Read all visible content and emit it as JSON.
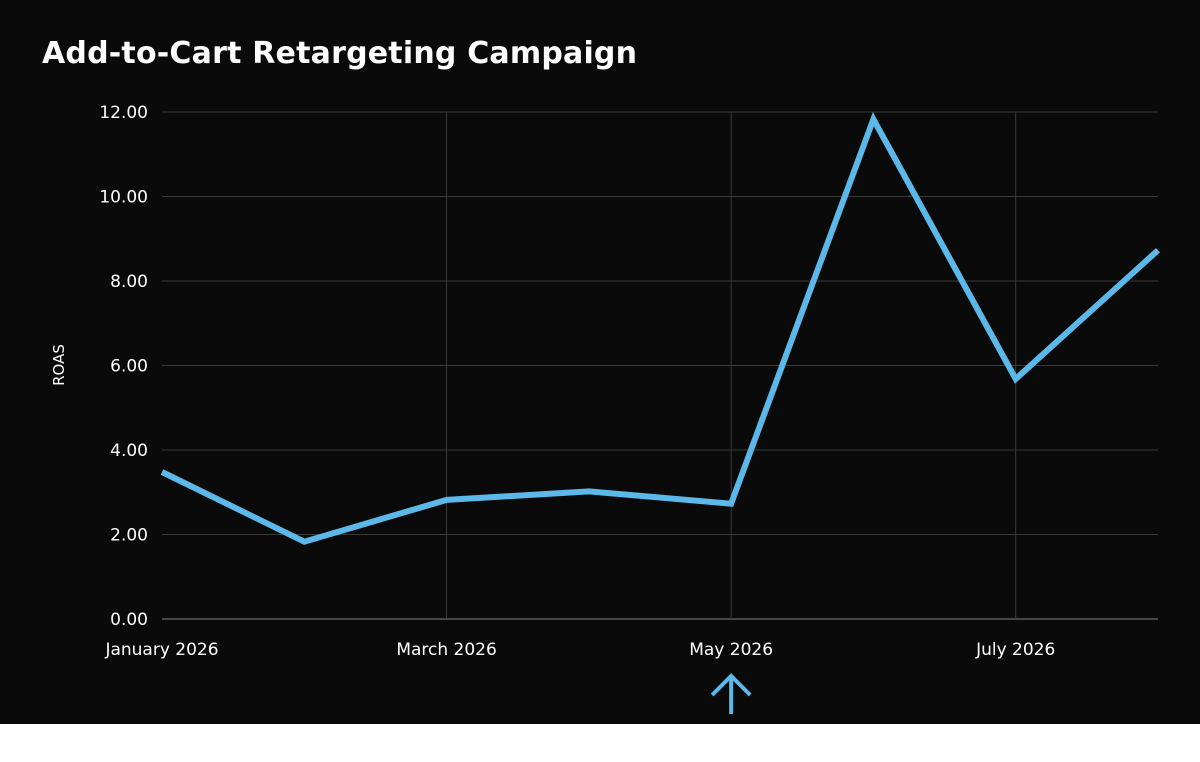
{
  "chart_data": {
    "type": "line",
    "title": "Add-to-Cart Retargeting Campaign",
    "xlabel": "",
    "ylabel": "ROAS",
    "x": [
      "2026-01",
      "2026-02",
      "2026-03",
      "2026-04",
      "2026-05",
      "2026-06",
      "2026-07",
      "2026-08"
    ],
    "x_tick_values": [
      "2026-01",
      "2026-03",
      "2026-05",
      "2026-07"
    ],
    "x_tick_labels": [
      "January 2026",
      "March 2026",
      "May 2026",
      "July 2026"
    ],
    "ylim": [
      0,
      12
    ],
    "y_ticks": [
      0,
      2,
      4,
      6,
      8,
      10,
      12
    ],
    "y_tick_labels": [
      "0.00",
      "2.00",
      "4.00",
      "6.00",
      "8.00",
      "10.00",
      "12.00"
    ],
    "series": [
      {
        "values": [
          3.48,
          1.83,
          2.82,
          3.02,
          2.73,
          11.83,
          5.68,
          8.73
        ],
        "color": "#5bb8e8"
      }
    ],
    "grid": {
      "horizontal": true,
      "vertical": true
    },
    "annotations": [
      {
        "type": "arrow",
        "x": "2026-05",
        "direction": "up",
        "color": "#5bb8e8"
      }
    ]
  }
}
